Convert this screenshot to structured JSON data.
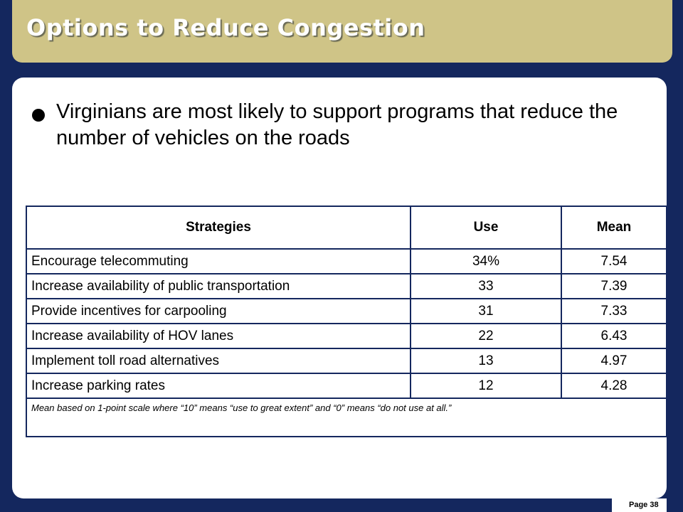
{
  "slide": {
    "title": "Options to Reduce Congestion",
    "bullet": "Virginians are most likely to support programs that reduce the number of vehicles on the roads",
    "page_label": "Page 38"
  },
  "table": {
    "headers": [
      "Strategies",
      "Use",
      "Mean"
    ],
    "rows": [
      {
        "strategy": "Encourage telecommuting",
        "use": "34%",
        "mean": "7.54"
      },
      {
        "strategy": "Increase availability of public transportation",
        "use": "33",
        "mean": "7.39"
      },
      {
        "strategy": "Provide incentives for carpooling",
        "use": "31",
        "mean": "7.33"
      },
      {
        "strategy": "Increase availability of HOV lanes",
        "use": "22",
        "mean": "6.43"
      },
      {
        "strategy": "Implement toll road alternatives",
        "use": "13",
        "mean": "4.97"
      },
      {
        "strategy": "Increase parking rates",
        "use": "12",
        "mean": "4.28"
      }
    ],
    "note": "Mean based on 1-point scale where “10” means “use to great extent” and “0” means “do not use at all.”"
  },
  "colors": {
    "background": "#14275e",
    "title_bar": "#cfc487",
    "content": "#ffffff"
  }
}
